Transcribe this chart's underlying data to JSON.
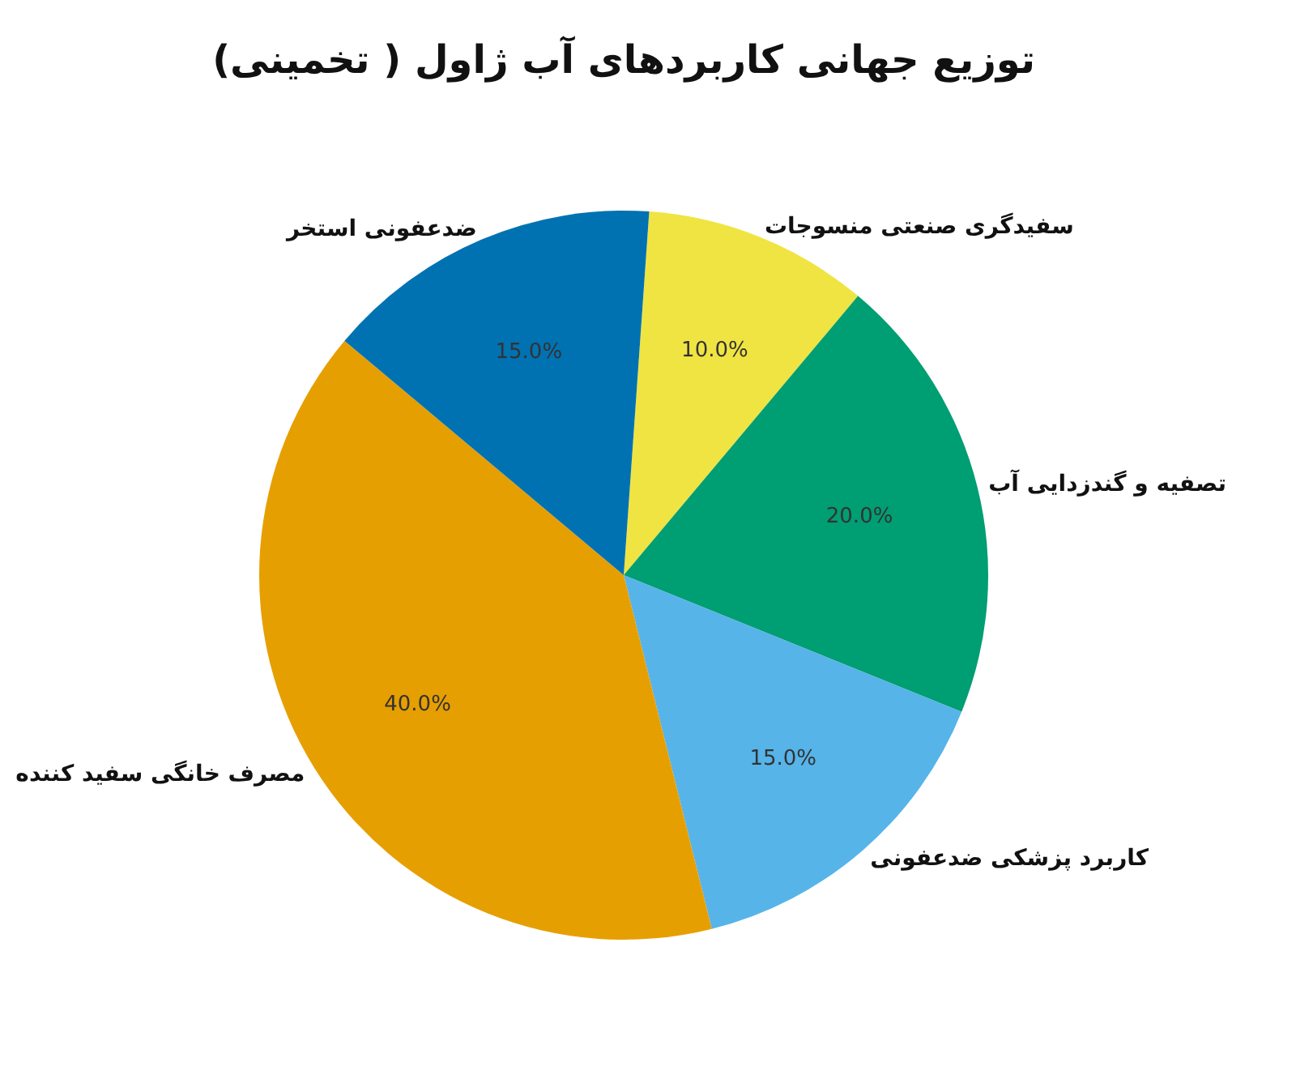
{
  "chart_data": {
    "type": "pie",
    "title": "توزیع جهانی کاربردهای آب ژاول ( تخمینی)",
    "categories": [
      "سفیدگری صنعتی منسوجات",
      "تصفیه و گندزدایی آب",
      "کاربرد پزشکی ضدعفونی",
      "مصرف خانگی سفید کننده",
      "ضدعفونی استخر"
    ],
    "values": [
      10,
      20,
      15,
      40,
      15
    ],
    "colors": [
      "#f0e442",
      "#009e73",
      "#56b4e9",
      "#e69f00",
      "#0072b2"
    ],
    "value_labels": [
      "10.0%",
      "20.0%",
      "15.0%",
      "40.0%",
      "15.0%"
    ],
    "legend": false
  }
}
